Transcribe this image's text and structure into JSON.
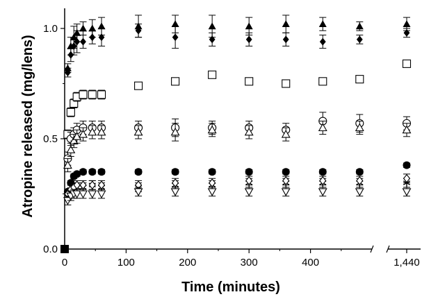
{
  "chart_data": {
    "type": "scatter",
    "title": "",
    "xlabel": "Time (minutes)",
    "ylabel": "Atropine released (mg/lens)",
    "x_ticks_main": [
      0,
      100,
      200,
      300,
      400
    ],
    "x_ticks_main_labels": [
      "0",
      "100",
      "200",
      "300",
      "400"
    ],
    "x_break_tick": 1440,
    "x_break_tick_label": "1,440",
    "y_ticks": [
      0.0,
      0.5,
      1.0
    ],
    "y_tick_labels": [
      "0.0",
      "0.5",
      "1.0"
    ],
    "ylim": [
      0,
      1.08
    ],
    "grid": false,
    "error_bars": true,
    "series": [
      {
        "marker": "filled-triangle",
        "points": [
          [
            0,
            0.0
          ],
          [
            5,
            0.82
          ],
          [
            10,
            0.92
          ],
          [
            15,
            0.96
          ],
          [
            20,
            0.98
          ],
          [
            30,
            1.0
          ],
          [
            45,
            1.0
          ],
          [
            60,
            1.01
          ],
          [
            120,
            1.01
          ],
          [
            180,
            1.02
          ],
          [
            240,
            1.01
          ],
          [
            300,
            1.01
          ],
          [
            360,
            1.02
          ],
          [
            420,
            1.02
          ],
          [
            480,
            1.01
          ],
          [
            1440,
            1.02
          ]
        ],
        "errors": [
          0,
          0.02,
          0.04,
          0.05,
          0.04,
          0.03,
          0.04,
          0.04,
          0.05,
          0.04,
          0.05,
          0.04,
          0.04,
          0.03,
          0.02,
          0.03
        ]
      },
      {
        "marker": "filled-diamond",
        "points": [
          [
            0,
            0.0
          ],
          [
            5,
            0.8
          ],
          [
            10,
            0.88
          ],
          [
            15,
            0.92
          ],
          [
            20,
            0.94
          ],
          [
            30,
            0.94
          ],
          [
            45,
            0.96
          ],
          [
            60,
            0.96
          ],
          [
            120,
            0.99
          ],
          [
            180,
            0.96
          ],
          [
            240,
            0.95
          ],
          [
            300,
            0.95
          ],
          [
            360,
            0.95
          ],
          [
            420,
            0.94
          ],
          [
            480,
            0.95
          ],
          [
            1440,
            0.98
          ]
        ],
        "errors": [
          0,
          0.02,
          0.03,
          0.04,
          0.05,
          0.03,
          0.03,
          0.04,
          0.03,
          0.05,
          0.03,
          0.03,
          0.03,
          0.03,
          0.02,
          0.02
        ]
      },
      {
        "marker": "open-square",
        "points": [
          [
            0,
            0.0
          ],
          [
            5,
            0.52
          ],
          [
            10,
            0.62
          ],
          [
            15,
            0.66
          ],
          [
            20,
            0.69
          ],
          [
            30,
            0.7
          ],
          [
            45,
            0.7
          ],
          [
            60,
            0.7
          ],
          [
            120,
            0.74
          ],
          [
            180,
            0.76
          ],
          [
            240,
            0.79
          ],
          [
            300,
            0.76
          ],
          [
            360,
            0.75
          ],
          [
            420,
            0.76
          ],
          [
            480,
            0.77
          ],
          [
            1440,
            0.84
          ]
        ],
        "errors": [
          0,
          0.02,
          0.02,
          0.02,
          0.02,
          0.02,
          0.02,
          0.02,
          0.0,
          0.0,
          0.0,
          0.0,
          0.0,
          0.0,
          0.0,
          0.0
        ]
      },
      {
        "marker": "open-circle",
        "points": [
          [
            0,
            0.0
          ],
          [
            5,
            0.41
          ],
          [
            10,
            0.5
          ],
          [
            15,
            0.52
          ],
          [
            20,
            0.54
          ],
          [
            30,
            0.55
          ],
          [
            45,
            0.55
          ],
          [
            60,
            0.55
          ],
          [
            120,
            0.55
          ],
          [
            180,
            0.55
          ],
          [
            240,
            0.55
          ],
          [
            300,
            0.55
          ],
          [
            360,
            0.54
          ],
          [
            420,
            0.58
          ],
          [
            480,
            0.57
          ],
          [
            1440,
            0.57
          ]
        ],
        "errors": [
          0,
          0.03,
          0.03,
          0.03,
          0.03,
          0.03,
          0.03,
          0.03,
          0.03,
          0.04,
          0.03,
          0.03,
          0.03,
          0.04,
          0.04,
          0.03
        ]
      },
      {
        "marker": "open-triangle",
        "points": [
          [
            0,
            0.0
          ],
          [
            5,
            0.38
          ],
          [
            10,
            0.45
          ],
          [
            15,
            0.49
          ],
          [
            20,
            0.51
          ],
          [
            30,
            0.52
          ],
          [
            45,
            0.53
          ],
          [
            60,
            0.53
          ],
          [
            120,
            0.53
          ],
          [
            180,
            0.53
          ],
          [
            240,
            0.54
          ],
          [
            300,
            0.53
          ],
          [
            360,
            0.52
          ],
          [
            420,
            0.55
          ],
          [
            480,
            0.55
          ],
          [
            1440,
            0.54
          ]
        ],
        "errors": [
          0,
          0.03,
          0.03,
          0.03,
          0.03,
          0.03,
          0.03,
          0.03,
          0.03,
          0.04,
          0.03,
          0.03,
          0.03,
          0.03,
          0.03,
          0.03
        ]
      },
      {
        "marker": "filled-circle",
        "points": [
          [
            0,
            0.0
          ],
          [
            5,
            0.26
          ],
          [
            10,
            0.3
          ],
          [
            15,
            0.33
          ],
          [
            20,
            0.34
          ],
          [
            30,
            0.35
          ],
          [
            45,
            0.35
          ],
          [
            60,
            0.35
          ],
          [
            120,
            0.35
          ],
          [
            180,
            0.35
          ],
          [
            240,
            0.35
          ],
          [
            300,
            0.35
          ],
          [
            360,
            0.35
          ],
          [
            420,
            0.35
          ],
          [
            480,
            0.35
          ],
          [
            1440,
            0.38
          ]
        ],
        "errors": [
          0,
          0.01,
          0.01,
          0.01,
          0.01,
          0.01,
          0.01,
          0.01,
          0.01,
          0.01,
          0.01,
          0.01,
          0.01,
          0.01,
          0.01,
          0.01
        ]
      },
      {
        "marker": "asterisk",
        "points": [
          [
            0,
            0.0
          ],
          [
            5,
            0.24
          ],
          [
            10,
            0.27
          ],
          [
            15,
            0.28
          ],
          [
            20,
            0.28
          ],
          [
            30,
            0.28
          ],
          [
            45,
            0.29
          ],
          [
            60,
            0.28
          ],
          [
            120,
            0.28
          ],
          [
            180,
            0.29
          ],
          [
            240,
            0.29
          ],
          [
            300,
            0.3
          ],
          [
            360,
            0.3
          ],
          [
            420,
            0.3
          ],
          [
            480,
            0.3
          ],
          [
            1440,
            0.3
          ]
        ],
        "errors": [
          0,
          0.02,
          0.02,
          0.02,
          0.02,
          0.02,
          0.02,
          0.02,
          0.02,
          0.02,
          0.02,
          0.02,
          0.02,
          0.02,
          0.02,
          0.02
        ]
      },
      {
        "marker": "open-diamond",
        "points": [
          [
            0,
            0.0
          ],
          [
            5,
            0.25
          ],
          [
            10,
            0.27
          ],
          [
            15,
            0.28
          ],
          [
            20,
            0.29
          ],
          [
            30,
            0.29
          ],
          [
            45,
            0.29
          ],
          [
            60,
            0.29
          ],
          [
            120,
            0.29
          ],
          [
            180,
            0.3
          ],
          [
            240,
            0.3
          ],
          [
            300,
            0.31
          ],
          [
            360,
            0.31
          ],
          [
            420,
            0.31
          ],
          [
            480,
            0.31
          ],
          [
            1440,
            0.32
          ]
        ],
        "errors": [
          0,
          0.02,
          0.02,
          0.02,
          0.02,
          0.02,
          0.02,
          0.02,
          0.02,
          0.02,
          0.02,
          0.02,
          0.02,
          0.02,
          0.02,
          0.02
        ]
      },
      {
        "marker": "open-down-triangle",
        "points": [
          [
            0,
            0.0
          ],
          [
            5,
            0.22
          ],
          [
            10,
            0.24
          ],
          [
            15,
            0.25
          ],
          [
            20,
            0.25
          ],
          [
            30,
            0.25
          ],
          [
            45,
            0.25
          ],
          [
            60,
            0.25
          ],
          [
            120,
            0.26
          ],
          [
            180,
            0.26
          ],
          [
            240,
            0.26
          ],
          [
            300,
            0.26
          ],
          [
            360,
            0.26
          ],
          [
            420,
            0.26
          ],
          [
            480,
            0.26
          ],
          [
            1440,
            0.26
          ]
        ],
        "errors": [
          0,
          0.02,
          0.02,
          0.02,
          0.02,
          0.02,
          0.02,
          0.02,
          0.02,
          0.02,
          0.02,
          0.02,
          0.02,
          0.02,
          0.02,
          0.02
        ]
      }
    ]
  }
}
